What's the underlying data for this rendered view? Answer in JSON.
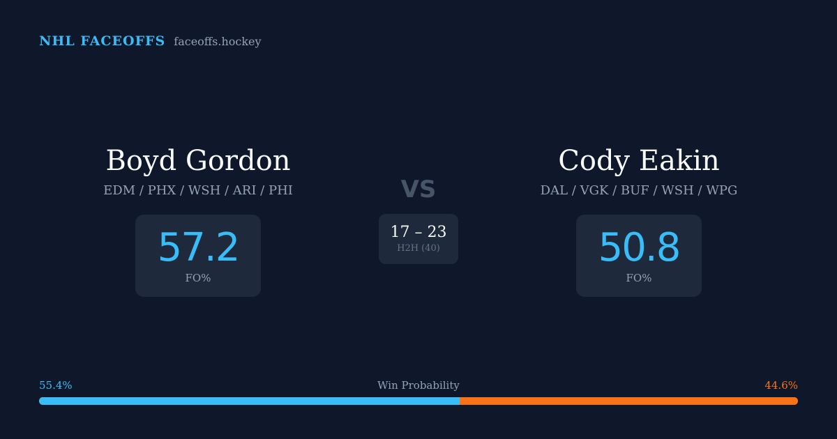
{
  "brand": {
    "name": "NHL FACEOFFS",
    "domain": "faceoffs.hockey"
  },
  "players": [
    {
      "name": "Boyd Gordon",
      "teams": "EDM / PHX / WSH / ARI / PHI",
      "stat_value": "57.2",
      "stat_label": "FO%"
    },
    {
      "name": "Cody Eakin",
      "teams": "DAL / VGK / BUF / WSH / WPG",
      "stat_value": "50.8",
      "stat_label": "FO%"
    }
  ],
  "matchup": {
    "vs_label": "VS",
    "h2h_score": "17 – 23",
    "h2h_label": "H2H (40)"
  },
  "win_probability": {
    "title": "Win Probability",
    "left_label": "55.4%",
    "right_label": "44.6%",
    "left_fraction": 0.554,
    "right_fraction": 0.446,
    "left_color": "#38bdf8",
    "right_color": "#f97316"
  }
}
